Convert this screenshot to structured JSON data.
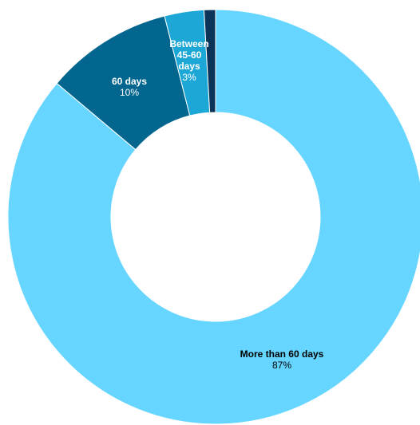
{
  "chart_data": {
    "type": "pie",
    "donut": true,
    "slices": [
      {
        "key": "more-than-60-days",
        "label": "More than 60 days",
        "percent_label": "87%",
        "value": 87,
        "color": "#66d5ff",
        "label_color": "#000000",
        "pct_color": "#000000"
      },
      {
        "key": "60-days",
        "label": "60 days",
        "percent_label": "10%",
        "value": 10,
        "color": "#02668f",
        "label_color": "#ffffff",
        "pct_color": "#ffffff"
      },
      {
        "key": "between-45-60-days",
        "label_lines": [
          "Between",
          "45-60",
          "days"
        ],
        "percent_label": "3%",
        "value": 3.1,
        "color": "#1da7d6",
        "label_color": "#ffffff",
        "pct_color": "#ffffff"
      },
      {
        "key": "other-small-slice",
        "value": 0.9,
        "color": "#0c3458"
      }
    ],
    "legend": "none",
    "start_angle_deg": 0,
    "direction": "clockwise"
  }
}
